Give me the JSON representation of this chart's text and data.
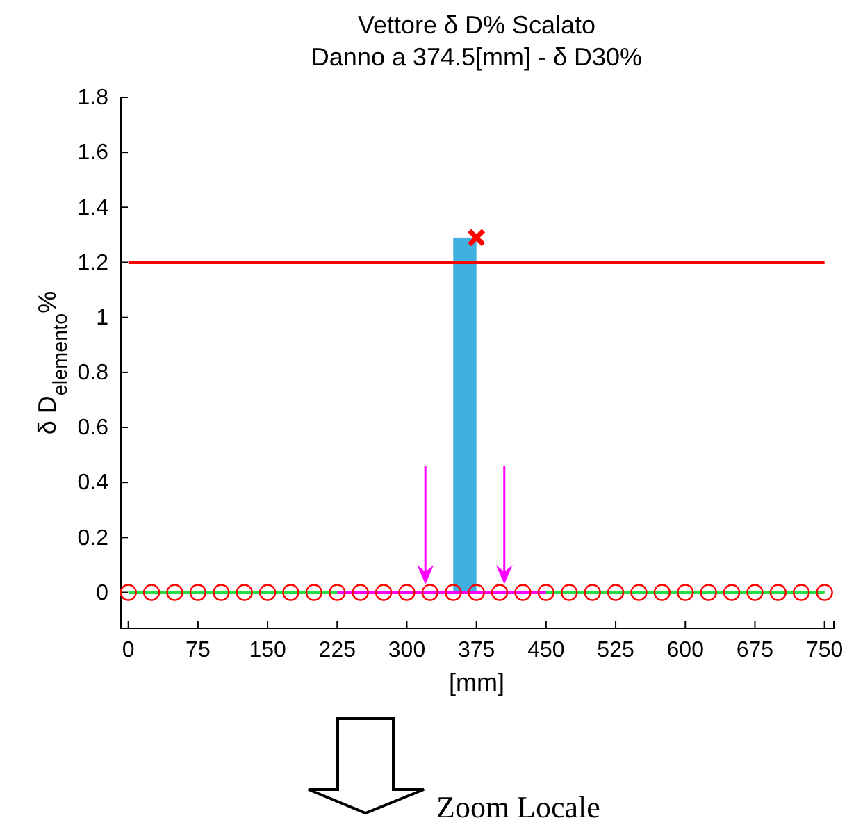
{
  "chart_data": {
    "type": "line",
    "title": "Vettore δ D% Scalato\nDanno a 374.5[mm] - δ D30%",
    "xlabel": "[mm]",
    "ylabel": "δ D$_{elemento}$%",
    "xlim": [
      -8,
      760
    ],
    "ylim": [
      -0.13,
      1.8
    ],
    "xticks": [
      0,
      75,
      150,
      225,
      300,
      375,
      450,
      525,
      600,
      675,
      750
    ],
    "yticks": [
      0,
      0.2,
      0.4,
      0.6,
      0.8,
      1,
      1.2,
      1.4,
      1.6,
      1.8
    ],
    "grid": false,
    "annotations": [
      "Zoom Locale"
    ],
    "series": [
      {
        "type": "bar",
        "color": "#41b0e0",
        "x": [
          362.5
        ],
        "values": [
          1.29
        ]
      },
      {
        "color": "#22dd44",
        "x": [
          0,
          750
        ],
        "values": [
          0,
          0
        ],
        "marker": "none"
      },
      {
        "color": "#ff00ff",
        "x": [
          225,
          450
        ],
        "values": [
          0,
          0
        ],
        "marker": "none"
      },
      {
        "type": "scatter",
        "color": "#ff0000",
        "marker": "circle",
        "x": [
          0,
          25,
          50,
          75,
          100,
          125,
          150,
          175,
          200,
          225,
          250,
          275,
          300,
          325,
          350,
          375,
          400,
          425,
          450,
          475,
          500,
          525,
          550,
          575,
          600,
          625,
          650,
          675,
          700,
          725,
          750
        ],
        "values": [
          0,
          0,
          0,
          0,
          0,
          0,
          0,
          0,
          0,
          0,
          0,
          0,
          0,
          0,
          0,
          0,
          0,
          0,
          0,
          0,
          0,
          0,
          0,
          0,
          0,
          0,
          0,
          0,
          0,
          0,
          0
        ]
      },
      {
        "color": "#ff0000",
        "x": [
          0,
          750
        ],
        "values": [
          1.2,
          1.2
        ],
        "marker": "none"
      },
      {
        "type": "scatter",
        "color": "#ff0000",
        "marker": "cross",
        "x": [
          375
        ],
        "values": [
          1.29
        ]
      }
    ]
  }
}
